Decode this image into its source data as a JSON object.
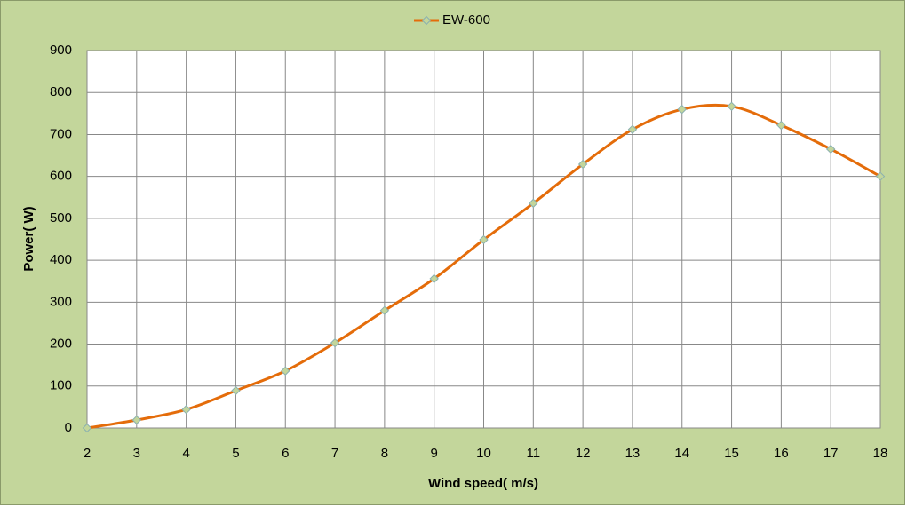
{
  "chart_data": {
    "type": "line",
    "legend_label_position": "top",
    "x_label": "Wind speed( m/s)",
    "y_label": "Power( W)",
    "x": [
      2,
      3,
      4,
      5,
      6,
      7,
      8,
      9,
      10,
      11,
      12,
      13,
      14,
      15,
      16,
      17,
      18
    ],
    "series": [
      {
        "name": "EW-600",
        "color": "#e46c0a",
        "values": [
          0,
          19,
          44,
          89,
          136,
          203,
          280,
          356,
          449,
          536,
          629,
          712,
          760,
          767,
          722,
          665,
          600
        ]
      }
    ],
    "xlim": [
      2,
      18
    ],
    "xticks": [
      2,
      3,
      4,
      5,
      6,
      7,
      8,
      9,
      10,
      11,
      12,
      13,
      14,
      15,
      16,
      17,
      18
    ],
    "ylim": [
      0,
      900
    ],
    "yticks": [
      0,
      100,
      200,
      300,
      400,
      500,
      600,
      700,
      800,
      900
    ],
    "grid": true
  }
}
